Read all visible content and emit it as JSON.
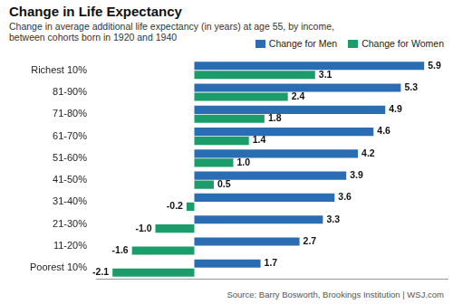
{
  "chart_data": {
    "type": "bar",
    "orientation": "horizontal",
    "title": "Change in Life Expectancy",
    "subtitle": "Change in average additional life expectancy (in years) at age 55, by income, between cohorts born in 1920 and 1940",
    "annotations": [
      "Source: Barry Bosworth, Brookings Institution | WSJ.com"
    ],
    "categories": [
      "Richest 10%",
      "81-90%",
      "71-80%",
      "61-70%",
      "51-60%",
      "41-50%",
      "31-40%",
      "21-30%",
      "11-20%",
      "Poorest 10%"
    ],
    "series": [
      {
        "name": "Change for Men",
        "color": "#2b6db3",
        "values": [
          5.9,
          5.3,
          4.9,
          4.6,
          4.2,
          3.9,
          3.6,
          3.3,
          2.7,
          1.7
        ],
        "value_labels": [
          "5.9",
          "5.3",
          "4.9",
          "4.6",
          "4.2",
          "3.9",
          "3.6",
          "3.3",
          "2.7",
          "1.7"
        ]
      },
      {
        "name": "Change for Women",
        "color": "#1b9c6b",
        "values": [
          3.1,
          2.4,
          1.8,
          1.4,
          1.0,
          0.5,
          -0.2,
          -1.0,
          -1.6,
          -2.1
        ],
        "value_labels": [
          "3.1",
          "2.4",
          "1.8",
          "1.4",
          "1.0",
          "0.5",
          "-0.2",
          "-1.0",
          "-1.6",
          "-2.1"
        ]
      }
    ],
    "xlim": [
      -2.5,
      6.5
    ],
    "tick_labels": "y",
    "grid": false,
    "legend": "top-right",
    "data_labels": true
  }
}
